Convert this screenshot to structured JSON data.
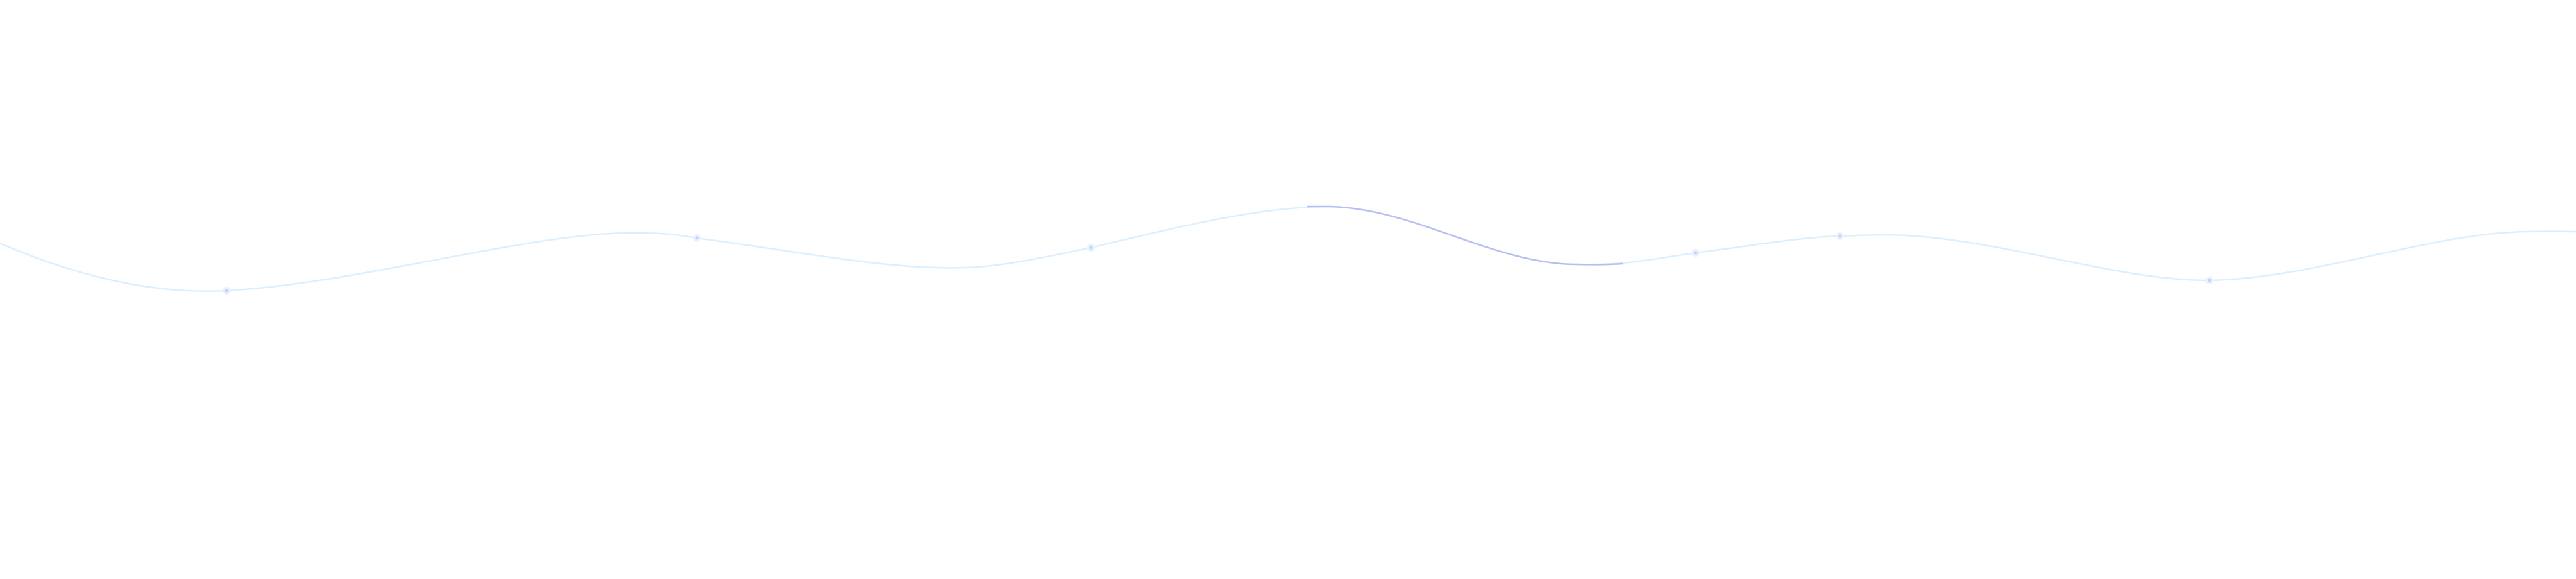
{
  "wave": {
    "colors": {
      "background": "#ffffff",
      "line": "#dcefff",
      "highlight": "#b8bff0",
      "marker": "#c9cdf3",
      "marker_glow": "#e6f3ff"
    }
  }
}
